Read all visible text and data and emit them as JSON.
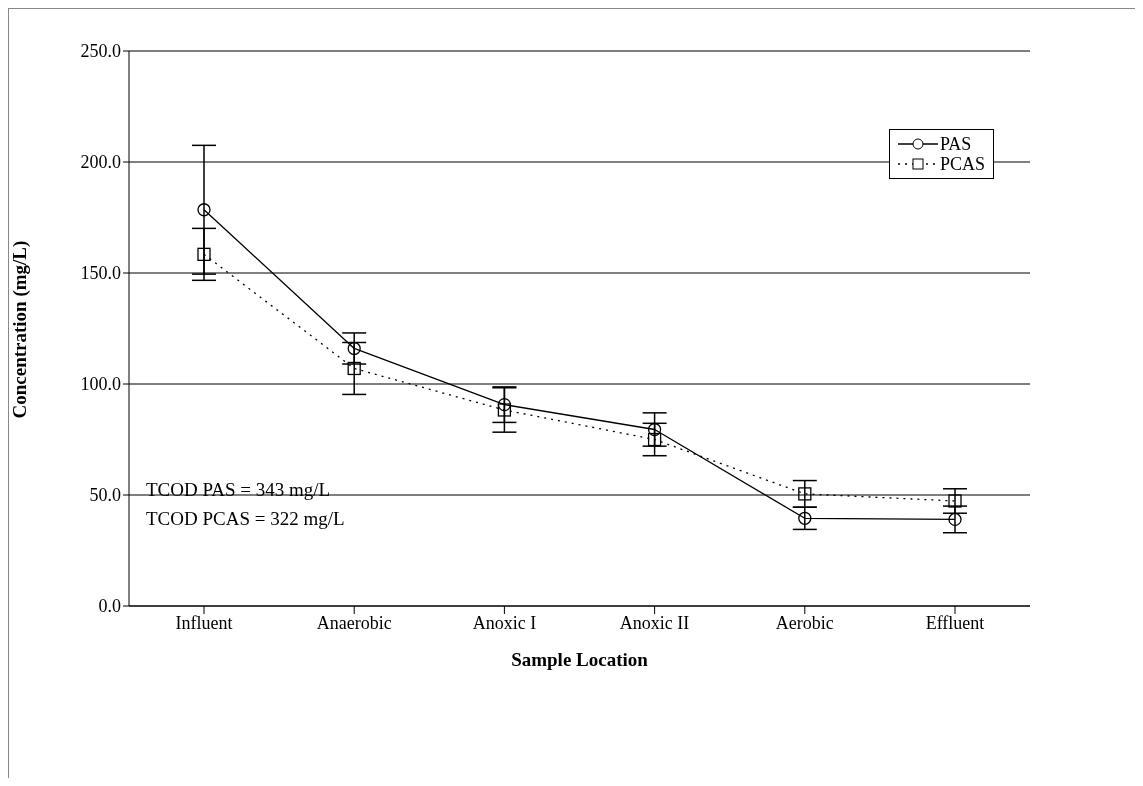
{
  "chart_data": {
    "type": "line",
    "xlabel": "Sample Location",
    "ylabel": "Concentration (mg/L)",
    "categories": [
      "Influent",
      "Anaerobic",
      "Anoxic I",
      "Anoxic II",
      "Aerobic",
      "Effluent"
    ],
    "series": [
      {
        "name": "PAS",
        "color": "#000000",
        "values": [
          178.5,
          116,
          90.7,
          79.5,
          39.5,
          39
        ],
        "errors": [
          29,
          7,
          8,
          7.5,
          5,
          6
        ],
        "marker": "circle",
        "line_style": "solid"
      },
      {
        "name": "PCAS",
        "color": "#000000",
        "values": [
          158.4,
          107,
          88.3,
          75,
          50.5,
          47.3
        ],
        "errors": [
          11.7,
          11.7,
          10,
          7.3,
          6,
          5.5
        ],
        "marker": "square",
        "line_style": "dotted"
      }
    ],
    "ylim": [
      0,
      250
    ],
    "yticks": [
      {
        "value": 0,
        "label": "0.0"
      },
      {
        "value": 50,
        "label": "50.0"
      },
      {
        "value": 100,
        "label": "100.0"
      },
      {
        "value": 150,
        "label": "150.0"
      },
      {
        "value": 200,
        "label": "200.0"
      },
      {
        "value": 250,
        "label": "250.0"
      }
    ],
    "grid": "y",
    "legend": "top right",
    "annotations": [
      "TCOD PAS = 343 mg/L",
      "TCOD PCAS = 322 mg/L"
    ]
  }
}
